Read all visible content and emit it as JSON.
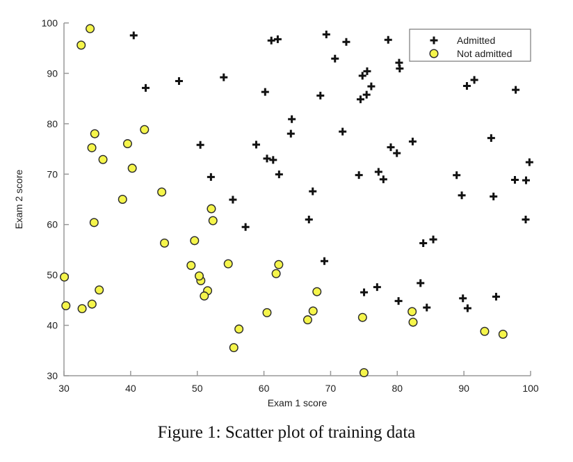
{
  "caption": "Figure 1: Scatter plot of training data",
  "chart_data": {
    "type": "scatter",
    "title": "",
    "xlabel": "Exam 1 score",
    "ylabel": "Exam 2 score",
    "xlim": [
      30,
      100
    ],
    "ylim": [
      30,
      100
    ],
    "xticks": [
      30,
      40,
      50,
      60,
      70,
      80,
      90,
      100
    ],
    "yticks": [
      30,
      40,
      50,
      60,
      70,
      80,
      90,
      100
    ],
    "grid": false,
    "box": "left-bottom-spines-only",
    "colors": {
      "plus_marker": "#111111",
      "circle_fill": "#f5f54b",
      "circle_edge": "#2a2a2a",
      "axis_line": "#999999",
      "tick_text": "#1d1d1d",
      "legend_border": "#777777",
      "background": "#ffffff"
    },
    "legend": {
      "position": "top-right",
      "entries": [
        {
          "label": "Admitted",
          "marker": "plus"
        },
        {
          "label": "Not admitted",
          "marker": "circle"
        }
      ]
    },
    "series": [
      {
        "name": "Admitted",
        "marker": "plus",
        "points": [
          [
            60.18,
            86.31
          ],
          [
            79.03,
            75.34
          ],
          [
            61.11,
            96.51
          ],
          [
            75.02,
            46.55
          ],
          [
            76.1,
            87.42
          ],
          [
            84.43,
            43.53
          ],
          [
            82.31,
            76.48
          ],
          [
            69.36,
            97.72
          ],
          [
            53.97,
            89.21
          ],
          [
            69.07,
            52.74
          ],
          [
            70.66,
            92.93
          ],
          [
            76.98,
            47.58
          ],
          [
            89.68,
            65.8
          ],
          [
            77.92,
            68.97
          ],
          [
            62.27,
            69.95
          ],
          [
            80.19,
            44.82
          ],
          [
            61.38,
            72.81
          ],
          [
            85.4,
            57.05
          ],
          [
            52.05,
            69.43
          ],
          [
            64.18,
            80.91
          ],
          [
            83.9,
            56.31
          ],
          [
            94.44,
            65.57
          ],
          [
            77.19,
            70.46
          ],
          [
            97.77,
            86.73
          ],
          [
            62.07,
            96.77
          ],
          [
            91.56,
            88.7
          ],
          [
            79.94,
            74.16
          ],
          [
            99.27,
            61.0
          ],
          [
            90.55,
            43.39
          ],
          [
            97.65,
            68.86
          ],
          [
            74.25,
            69.82
          ],
          [
            71.8,
            78.45
          ],
          [
            75.4,
            85.76
          ],
          [
            40.46,
            97.54
          ],
          [
            80.28,
            92.12
          ],
          [
            66.75,
            60.99
          ],
          [
            64.04,
            78.03
          ],
          [
            72.35,
            96.23
          ],
          [
            60.46,
            73.09
          ],
          [
            58.84,
            75.86
          ],
          [
            99.83,
            72.37
          ],
          [
            47.26,
            88.48
          ],
          [
            50.46,
            75.81
          ],
          [
            88.91,
            69.8
          ],
          [
            94.83,
            45.69
          ],
          [
            67.32,
            66.59
          ],
          [
            57.24,
            59.51
          ],
          [
            80.37,
            90.96
          ],
          [
            68.47,
            85.59
          ],
          [
            75.48,
            90.42
          ],
          [
            78.64,
            96.65
          ],
          [
            94.09,
            77.16
          ],
          [
            90.45,
            87.51
          ],
          [
            74.49,
            84.85
          ],
          [
            89.85,
            45.36
          ],
          [
            83.49,
            48.38
          ],
          [
            42.26,
            87.1
          ],
          [
            99.32,
            68.78
          ],
          [
            55.34,
            64.93
          ],
          [
            74.78,
            89.53
          ]
        ]
      },
      {
        "name": "Not admitted",
        "marker": "circle",
        "points": [
          [
            34.62,
            78.02
          ],
          [
            30.29,
            43.89
          ],
          [
            35.85,
            72.9
          ],
          [
            45.08,
            56.32
          ],
          [
            95.86,
            38.23
          ],
          [
            75.01,
            30.6
          ],
          [
            39.54,
            76.04
          ],
          [
            67.95,
            46.68
          ],
          [
            67.37,
            42.84
          ],
          [
            50.53,
            48.86
          ],
          [
            34.21,
            44.21
          ],
          [
            93.11,
            38.8
          ],
          [
            61.83,
            50.26
          ],
          [
            38.79,
            65.0
          ],
          [
            52.11,
            63.13
          ],
          [
            40.24,
            71.17
          ],
          [
            54.64,
            52.21
          ],
          [
            33.92,
            98.87
          ],
          [
            74.79,
            41.57
          ],
          [
            34.18,
            75.24
          ],
          [
            51.55,
            46.86
          ],
          [
            82.37,
            40.62
          ],
          [
            51.05,
            45.82
          ],
          [
            62.22,
            52.06
          ],
          [
            32.58,
            95.6
          ],
          [
            35.29,
            47.02
          ],
          [
            56.25,
            39.26
          ],
          [
            30.06,
            49.59
          ],
          [
            44.67,
            66.45
          ],
          [
            66.56,
            41.09
          ],
          [
            49.07,
            51.88
          ],
          [
            32.72,
            43.31
          ],
          [
            60.46,
            42.51
          ],
          [
            82.23,
            42.72
          ],
          [
            42.08,
            78.84
          ],
          [
            52.35,
            60.77
          ],
          [
            55.48,
            35.57
          ],
          [
            49.59,
            56.81
          ],
          [
            50.29,
            49.8
          ],
          [
            34.52,
            60.4
          ]
        ]
      }
    ]
  }
}
